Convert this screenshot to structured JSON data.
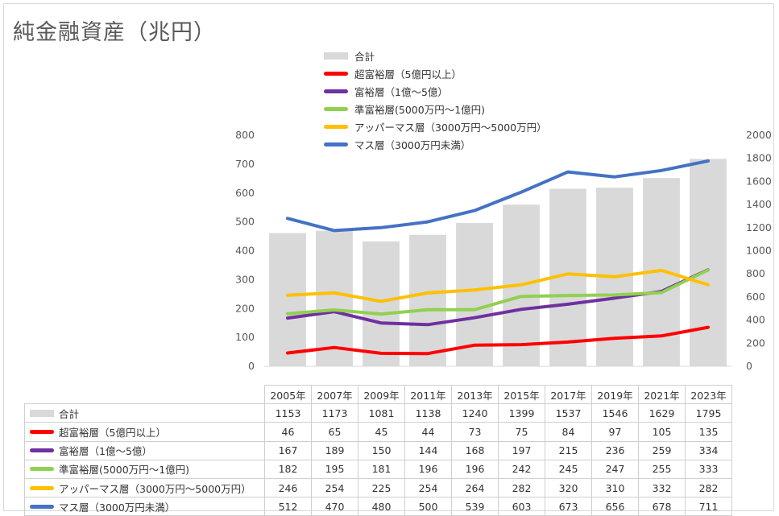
{
  "title": "純金融資産（兆円）",
  "colors": {
    "total": "#d9d9d9",
    "ultra": "#ff0000",
    "rich": "#7030a0",
    "semi": "#92d050",
    "upper": "#ffc000",
    "mass": "#4472c4"
  },
  "chart_data": {
    "type": "bar",
    "title": "純金融資産（兆円）",
    "categories": [
      "2005年",
      "2007年",
      "2009年",
      "2011年",
      "2013年",
      "2015年",
      "2017年",
      "2019年",
      "2021年",
      "2023年"
    ],
    "ylim_left": [
      0,
      800
    ],
    "yticks_left": [
      0,
      100,
      200,
      300,
      400,
      500,
      600,
      700,
      800
    ],
    "ylim_right": [
      0,
      2000
    ],
    "yticks_right": [
      0,
      200,
      400,
      600,
      800,
      1000,
      1200,
      1400,
      1600,
      1800,
      2000
    ],
    "legend_position": "top",
    "grid": false,
    "series": [
      {
        "name": "合計",
        "kind": "bar",
        "axis": "right",
        "color_key": "total",
        "values": [
          1153,
          1173,
          1081,
          1138,
          1240,
          1399,
          1537,
          1546,
          1629,
          1795
        ]
      },
      {
        "name": "超富裕層（5億円以上）",
        "kind": "line",
        "axis": "left",
        "color_key": "ultra",
        "values": [
          46,
          65,
          45,
          44,
          73,
          75,
          84,
          97,
          105,
          135
        ]
      },
      {
        "name": "富裕層（1億～5億）",
        "kind": "line",
        "axis": "left",
        "color_key": "rich",
        "values": [
          167,
          189,
          150,
          144,
          168,
          197,
          215,
          236,
          259,
          334
        ]
      },
      {
        "name": "準富裕層(5000万円～1億円)",
        "kind": "line",
        "axis": "left",
        "color_key": "semi",
        "values": [
          182,
          195,
          181,
          196,
          196,
          242,
          245,
          247,
          255,
          333
        ]
      },
      {
        "name": "アッパーマス層（3000万円～5000万円）",
        "kind": "line",
        "axis": "left",
        "color_key": "upper",
        "values": [
          246,
          254,
          225,
          254,
          264,
          282,
          320,
          310,
          332,
          282
        ]
      },
      {
        "name": "マス層（3000万円未満）",
        "kind": "line",
        "axis": "left",
        "color_key": "mass",
        "values": [
          512,
          470,
          480,
          500,
          539,
          603,
          673,
          656,
          678,
          711
        ]
      }
    ],
    "table_series_labels": [
      "合計",
      "超富裕層（5億円以上）",
      "富裕層（1億～5億）",
      "準富裕層(5000万円～1億円)",
      "アッパーマス層（3000万円～5000万円）",
      "マス層（3000万円未満）"
    ]
  }
}
